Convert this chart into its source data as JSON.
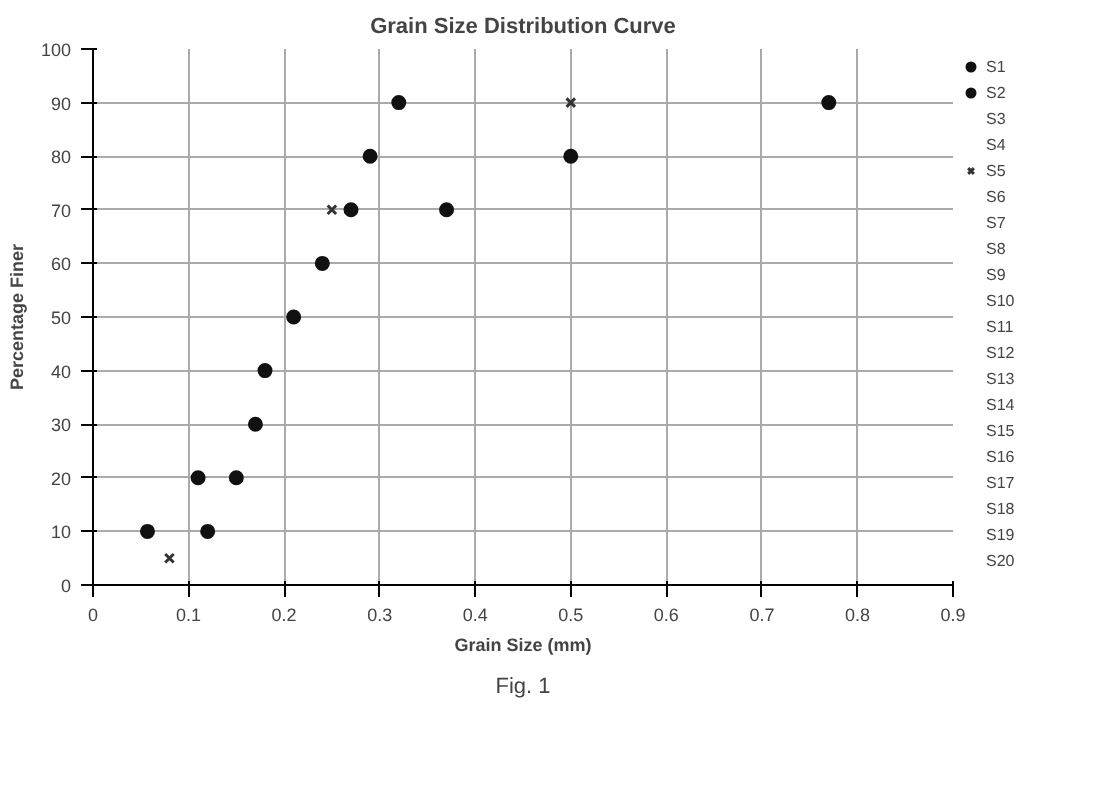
{
  "chart_data": {
    "type": "scatter",
    "title": "Grain Size Distribution Curve",
    "xlabel": "Grain Size (mm)",
    "ylabel": "Percentage Finer",
    "annotations": [
      "Fig. 1"
    ],
    "xlim": [
      0,
      0.9
    ],
    "ylim": [
      0,
      100
    ],
    "xticks": [
      0,
      0.1,
      0.2,
      0.3,
      0.4,
      0.5,
      0.6,
      0.7,
      0.8,
      0.9
    ],
    "yticks": [
      0,
      10,
      20,
      30,
      40,
      50,
      60,
      70,
      80,
      90,
      100
    ],
    "grid": true,
    "legend": "right",
    "series": [
      {
        "name": "S1",
        "color": "#111111",
        "marker": "circle",
        "x": [
          0.057,
          0.11,
          0.17,
          0.18,
          0.21,
          0.24,
          0.27,
          0.29,
          0.32
        ],
        "values": [
          10,
          20,
          30,
          40,
          50,
          60,
          70,
          80,
          90
        ]
      },
      {
        "name": "S2",
        "color": "#111111",
        "marker": "circle",
        "x": [
          0.12,
          0.15,
          0.37,
          0.5,
          0.77
        ],
        "values": [
          10,
          20,
          70,
          80,
          90
        ]
      },
      {
        "name": "S3"
      },
      {
        "name": "S4"
      },
      {
        "name": "S5",
        "color": "#333333",
        "marker": "cross",
        "x": [
          0.08,
          0.25,
          0.5
        ],
        "values": [
          5,
          70,
          90
        ]
      },
      {
        "name": "S6"
      },
      {
        "name": "S7"
      },
      {
        "name": "S8"
      },
      {
        "name": "S9"
      },
      {
        "name": "S10"
      },
      {
        "name": "S11"
      },
      {
        "name": "S12"
      },
      {
        "name": "S13"
      },
      {
        "name": "S14"
      },
      {
        "name": "S15"
      },
      {
        "name": "S16"
      },
      {
        "name": "S17"
      },
      {
        "name": "S18"
      },
      {
        "name": "S19"
      },
      {
        "name": "S20"
      }
    ]
  }
}
